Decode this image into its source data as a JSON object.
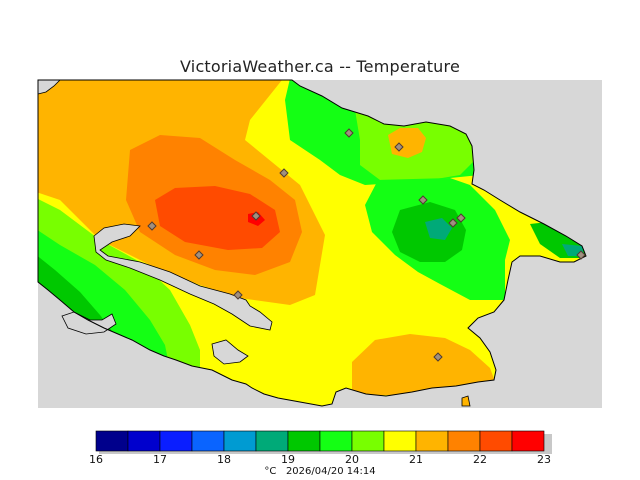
{
  "title": "VictoriaWeather.ca -- Temperature",
  "legend": {
    "ticks": [
      "16",
      "17",
      "18",
      "19",
      "20",
      "21",
      "22",
      "23"
    ],
    "colors": [
      "#00008c",
      "#0000cd",
      "#0a1eff",
      "#0a64ff",
      "#009bd2",
      "#00aa78",
      "#00c800",
      "#14ff14",
      "#78ff00",
      "#ffff00",
      "#ffb400",
      "#ff8200",
      "#ff4b00",
      "#ff0000"
    ],
    "unit": "°C",
    "timestamp": "2026/04/20 14:14"
  },
  "map_colors": {
    "background": "#d7d7d7",
    "outline": "#000000",
    "station_marker": "#a09080"
  }
}
